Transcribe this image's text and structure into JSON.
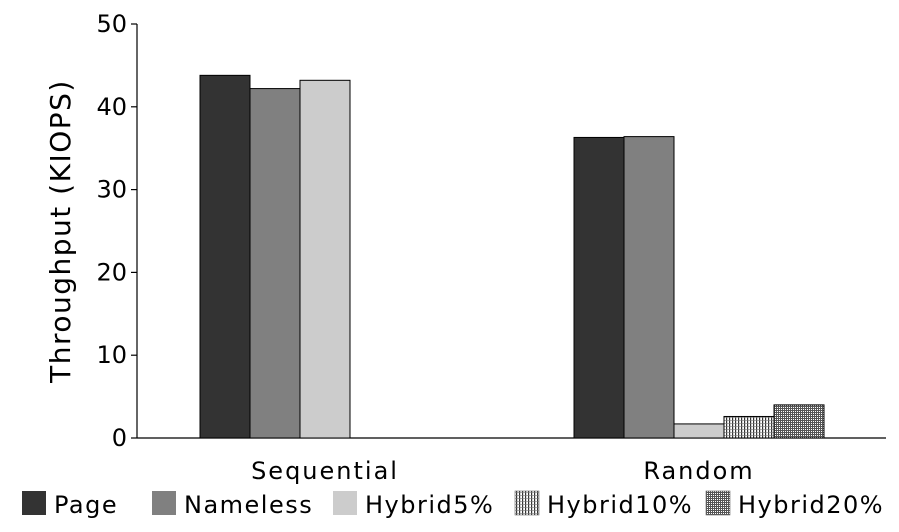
{
  "chart_data": {
    "type": "bar",
    "title": "",
    "xlabel": "",
    "ylabel": "Throughput (KIOPS)",
    "ylim": [
      0,
      50
    ],
    "yticks": [
      0,
      10,
      20,
      30,
      40,
      50
    ],
    "categories": [
      "Sequential",
      "Random"
    ],
    "series": [
      {
        "name": "Page",
        "values": [
          43.8,
          36.3
        ],
        "color": "#333333",
        "pattern": "solid"
      },
      {
        "name": "Nameless",
        "values": [
          42.2,
          36.4
        ],
        "color": "#808080",
        "pattern": "solid"
      },
      {
        "name": "Hybrid5%",
        "values": [
          43.2,
          1.7
        ],
        "color": "#cccccc",
        "pattern": "solid"
      },
      {
        "name": "Hybrid10%",
        "values": [
          null,
          2.6
        ],
        "color": "#ffffff",
        "pattern": "vertical-lines"
      },
      {
        "name": "Hybrid20%",
        "values": [
          null,
          4.0
        ],
        "color": "#ffffff",
        "pattern": "dense-grid"
      }
    ],
    "grid": false,
    "legend_position": "bottom"
  }
}
